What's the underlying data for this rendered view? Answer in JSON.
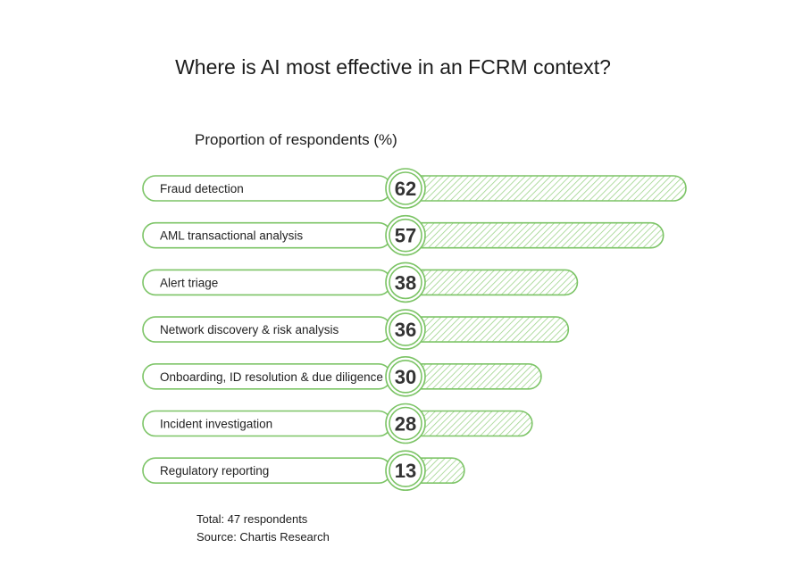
{
  "colors": {
    "accent": "#7cc466",
    "hatch": "#9ed48c",
    "text": "#222222"
  },
  "chart_data": {
    "type": "bar",
    "title": "Where is AI most effective in an FCRM context?",
    "subtitle": "Proportion of respondents (%)",
    "categories": [
      "Fraud detection",
      "AML transactional analysis",
      "Alert triage",
      "Network discovery & risk analysis",
      "Onboarding, ID resolution & due diligence",
      "Incident investigation",
      "Regulatory reporting"
    ],
    "values": [
      62,
      57,
      38,
      36,
      30,
      28,
      13
    ],
    "orientation": "horizontal",
    "grid": false
  },
  "footer": {
    "total": "Total: 47 respondents",
    "source": "Source: Chartis Research"
  }
}
